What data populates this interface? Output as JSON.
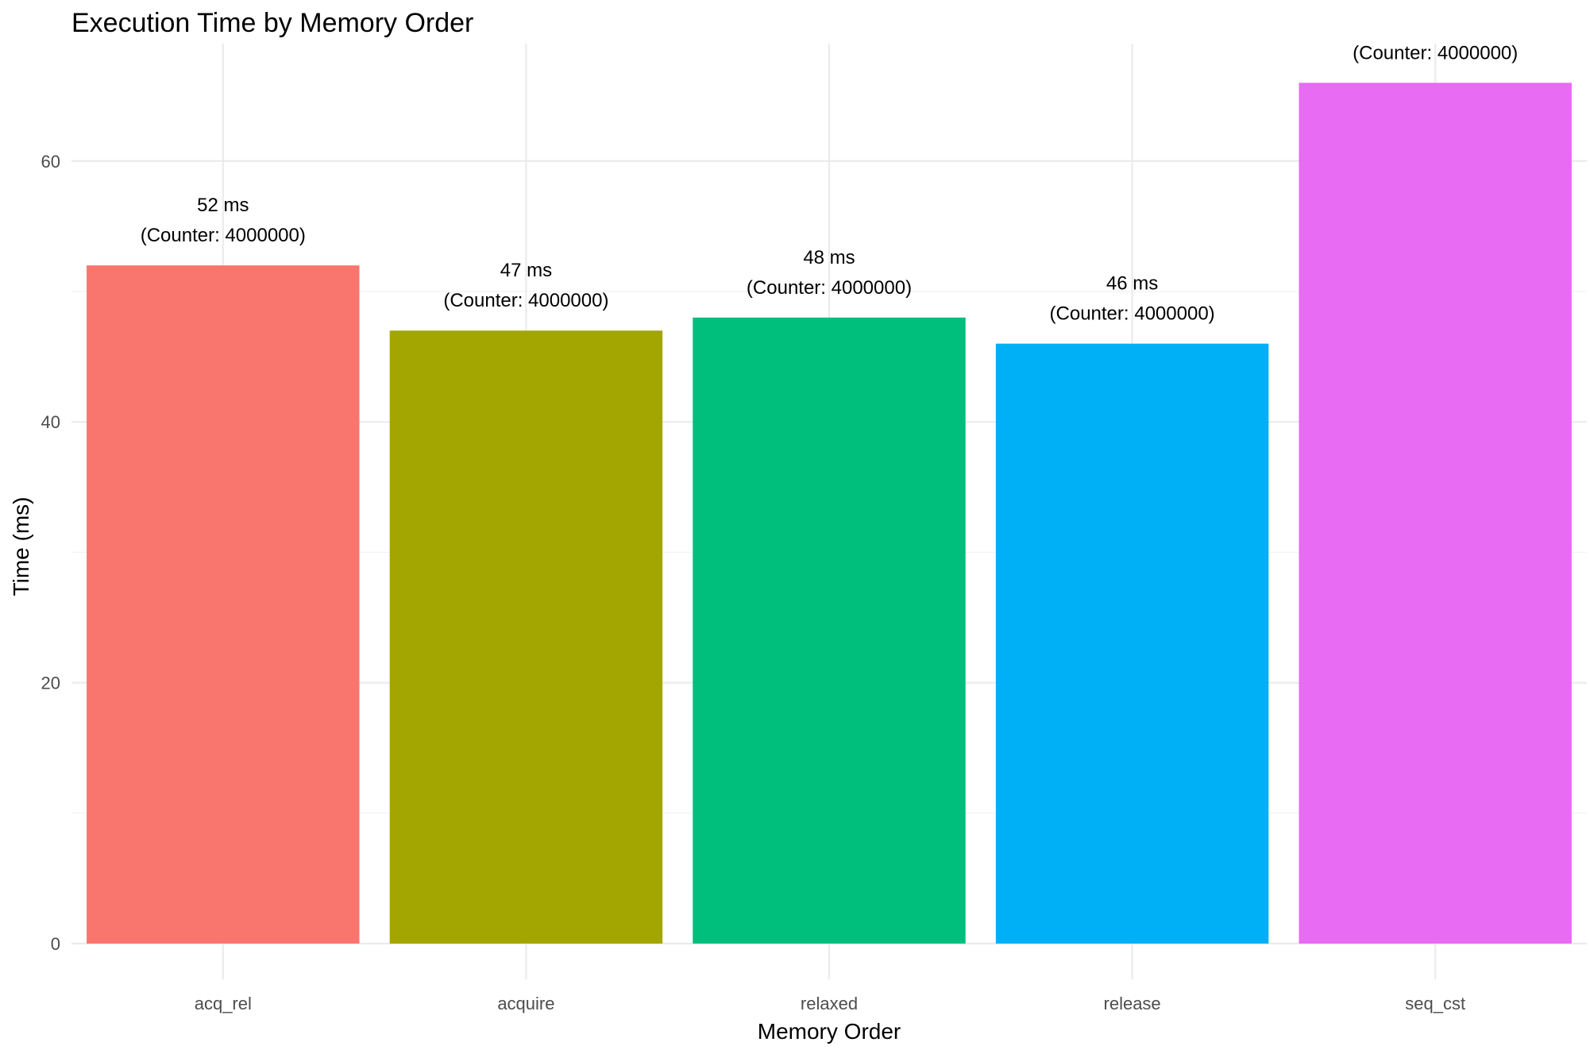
{
  "chart_data": {
    "type": "bar",
    "title": "Execution Time by Memory Order",
    "xlabel": "Memory Order",
    "ylabel": "Time (ms)",
    "categories": [
      "acq_rel",
      "acquire",
      "relaxed",
      "release",
      "seq_cst"
    ],
    "values": [
      52,
      47,
      48,
      46,
      66
    ],
    "colors": [
      "#F8766D",
      "#A3A500",
      "#00BF7D",
      "#00B0F6",
      "#E76BF3"
    ],
    "labels": [
      [
        "52 ms",
        "(Counter: 4000000)"
      ],
      [
        "47 ms",
        "(Counter: 4000000)"
      ],
      [
        "48 ms",
        "(Counter: 4000000)"
      ],
      [
        "46 ms",
        "(Counter: 4000000)"
      ],
      [
        "",
        "(Counter: 4000000)"
      ]
    ],
    "y_ticks": [
      0,
      20,
      40,
      60
    ],
    "ylim": [
      0,
      69
    ],
    "grid": true,
    "legend": "none"
  }
}
